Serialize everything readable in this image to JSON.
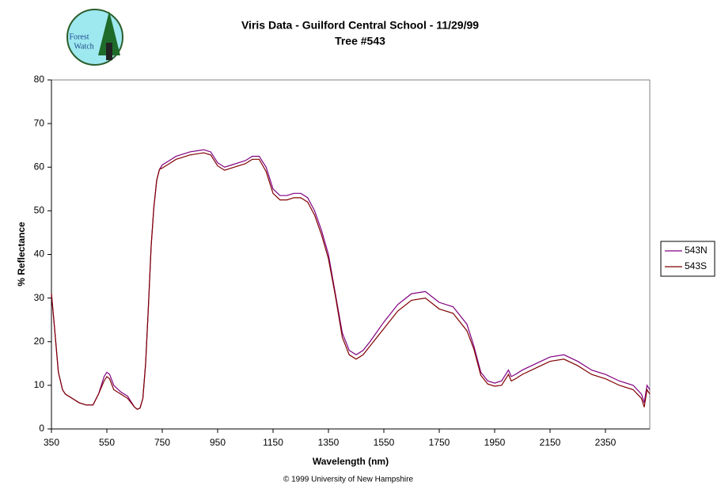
{
  "chart_data": {
    "type": "line",
    "title": "Viris Data - Guilford Central School - 11/29/99",
    "subtitle": "Tree #543",
    "x_label": "Wavelength (nm)",
    "y_label": "% Reflectance",
    "footer": "© 1999 University of New Hampshire",
    "x": [
      350,
      360,
      375,
      390,
      400,
      425,
      450,
      475,
      500,
      520,
      540,
      550,
      560,
      575,
      600,
      625,
      650,
      660,
      670,
      680,
      690,
      700,
      710,
      720,
      730,
      740,
      750,
      775,
      800,
      850,
      900,
      925,
      950,
      975,
      1000,
      1025,
      1050,
      1075,
      1100,
      1125,
      1150,
      1175,
      1200,
      1225,
      1250,
      1275,
      1300,
      1325,
      1350,
      1375,
      1400,
      1425,
      1450,
      1475,
      1500,
      1550,
      1600,
      1650,
      1700,
      1750,
      1800,
      1850,
      1875,
      1900,
      1925,
      1950,
      1975,
      2000,
      2010,
      2025,
      2050,
      2100,
      2150,
      2200,
      2250,
      2300,
      2350,
      2400,
      2450,
      2480,
      2490,
      2500,
      2510
    ],
    "series": [
      {
        "name": "543N",
        "color": "#800080",
        "values": [
          31,
          24,
          13,
          9,
          8,
          7,
          6,
          5.5,
          5.5,
          8,
          12,
          13,
          12.5,
          10,
          8.5,
          7.5,
          5,
          4.5,
          4.8,
          7,
          15,
          28,
          42,
          51,
          57,
          59.5,
          60.5,
          61.5,
          62.5,
          63.5,
          64,
          63.5,
          61,
          60,
          60.5,
          61,
          61.5,
          62.5,
          62.5,
          60,
          55,
          53.5,
          53.5,
          54,
          54,
          53,
          50,
          45.5,
          40,
          31,
          22,
          18,
          17,
          18,
          20,
          24.5,
          28.5,
          31,
          31.5,
          29,
          28,
          24,
          19,
          13,
          11,
          10.5,
          11,
          13.5,
          12,
          12.5,
          13.5,
          15,
          16.5,
          17,
          15.5,
          13.5,
          12.5,
          11,
          10,
          8,
          6,
          10,
          9
        ]
      },
      {
        "name": "543S",
        "color": "#800000",
        "values": [
          31,
          24,
          13,
          9,
          8,
          7,
          6,
          5.5,
          5.5,
          8,
          11,
          12,
          11.5,
          9,
          8,
          7,
          5,
          4.5,
          4.8,
          7,
          15,
          28,
          42,
          51,
          57,
          59.5,
          59.8,
          60.8,
          61.8,
          62.8,
          63.3,
          62.8,
          60.3,
          59.3,
          59.8,
          60.3,
          60.8,
          61.8,
          61.8,
          59,
          54,
          52.5,
          52.5,
          53,
          53,
          52,
          49,
          44.5,
          39,
          30.5,
          21,
          17,
          16,
          17,
          19,
          23,
          27,
          29.5,
          30,
          27.5,
          26.5,
          22.5,
          18.3,
          12.3,
          10.3,
          9.8,
          10,
          12.5,
          11,
          11.5,
          12.5,
          14,
          15.5,
          16,
          14.5,
          12.5,
          11.5,
          10,
          9,
          7,
          5,
          9,
          8
        ]
      }
    ],
    "xlim": [
      350,
      2510
    ],
    "ylim": [
      0,
      80
    ],
    "xticks": [
      350,
      550,
      750,
      950,
      1150,
      1350,
      1550,
      1750,
      1950,
      2150,
      2350
    ],
    "yticks": [
      0,
      10,
      20,
      30,
      40,
      50,
      60,
      70,
      80
    ],
    "legend": "right"
  },
  "logo": {
    "line1": "Forest",
    "line2": "Watch"
  }
}
